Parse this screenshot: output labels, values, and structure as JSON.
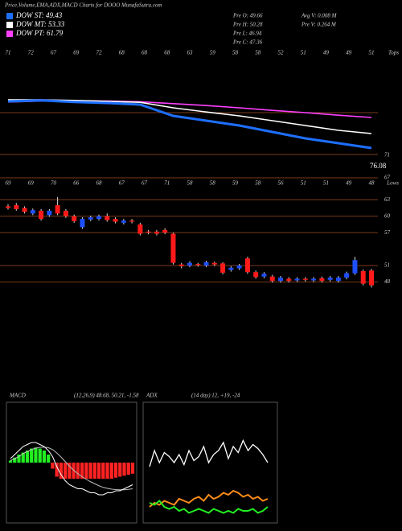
{
  "header": {
    "title": "Price,Volume,EMA,ADX,MACD Charts for DOOO MunafaSutra.com"
  },
  "legend": [
    {
      "label": "DOW ST: 49.43",
      "color": "#1e6fff"
    },
    {
      "label": "DOW MT: 53.33",
      "color": "#ffffff"
    },
    {
      "label": "DOW PT: 61.79",
      "color": "#ff40ff"
    }
  ],
  "stats": [
    "Pre O: 49.66",
    "Pre H: 50.28",
    "Pre L: 46.94",
    "Pre C: 47.36",
    "Avg V: 0.008 M",
    "Pre V: 0.264 M"
  ],
  "chart_data": [
    {
      "type": "line",
      "corner_label": "Tops",
      "top_labels": [
        "71",
        "72",
        "67",
        "69",
        "72",
        "68",
        "68",
        "68",
        "63",
        "59",
        "58",
        "58",
        "52",
        "51",
        "49",
        "49",
        "51"
      ],
      "right_labels": [
        "71",
        "76.08"
      ],
      "x": [
        0,
        4,
        8,
        12,
        16,
        20,
        24,
        28,
        32,
        36,
        40,
        44
      ],
      "xlim": [
        0,
        44
      ],
      "ylim": [
        44,
        76.5
      ],
      "series": [
        {
          "color": "#ff40ff",
          "values": [
            62.3,
            62.6,
            62.7,
            62.6,
            62.4,
            61.8,
            61.2,
            60.5,
            59.7,
            59,
            58.2,
            57.5
          ]
        },
        {
          "color": "#ffffff",
          "values": [
            63,
            63,
            62.8,
            62.5,
            62.2,
            60.5,
            59.2,
            58,
            56.5,
            55,
            53.5,
            52.5
          ]
        },
        {
          "color": "#1e6fff",
          "values": [
            62.5,
            62.8,
            62.3,
            62,
            61.5,
            58,
            56.5,
            55,
            53,
            51,
            49.5,
            48
          ]
        }
      ]
    },
    {
      "type": "candlestick",
      "corner_label": "Lows",
      "top_labels": [
        "69",
        "69",
        "70",
        "66",
        "68",
        "67",
        "67",
        "71",
        "58",
        "58",
        "59",
        "58",
        "56",
        "51",
        "51",
        "49",
        "48"
      ],
      "up_color": "#1e4fff",
      "down_color": "#ff1a1a",
      "ylim": [
        45,
        67
      ],
      "yticks": [
        67,
        63,
        60,
        57,
        51,
        48
      ],
      "open": [
        61.8,
        62,
        61.5,
        60.5,
        61,
        60.2,
        62,
        61,
        60,
        58,
        59.4,
        59.5,
        60,
        59.5,
        58.8,
        59.2,
        58.5,
        57.2,
        57.2,
        57.5,
        56.8,
        51.2,
        51,
        51.3,
        51,
        51.5,
        51.4,
        50.2,
        50.5,
        52.3,
        49.8,
        49,
        49,
        48.2,
        48.6,
        48.3,
        48.6,
        48.3,
        48.7,
        48.4,
        48.2,
        48.8,
        49.6,
        50,
        50.1
      ],
      "high": [
        62.2,
        62.4,
        61.8,
        61.4,
        61.3,
        61.3,
        63.5,
        61.3,
        60.3,
        59.8,
        60.1,
        60.3,
        60.5,
        59.8,
        59.5,
        59.5,
        58.8,
        57.5,
        57.5,
        57.8,
        57,
        51.5,
        51.8,
        51.5,
        51.9,
        51.7,
        51.6,
        50.9,
        51.3,
        52.6,
        50.1,
        49.8,
        49.3,
        49.1,
        48.9,
        48.9,
        48.9,
        48.9,
        49,
        49.1,
        49.1,
        49.9,
        52.6,
        50.3,
        50.4
      ],
      "low": [
        61.2,
        61,
        60.5,
        60.2,
        59.2,
        59.9,
        60.2,
        59.7,
        58.8,
        57.7,
        59.1,
        59.2,
        59,
        58.7,
        58.5,
        58.7,
        56.5,
        56.7,
        56.5,
        56.7,
        51.2,
        50.5,
        50.7,
        50.8,
        50.7,
        50.9,
        49.4,
        49.9,
        50.2,
        49.5,
        48.6,
        48.7,
        47.9,
        47.9,
        47.9,
        48,
        48.1,
        48,
        47.9,
        48.1,
        47.9,
        48.5,
        49.3,
        47.4,
        47
      ],
      "close": [
        61.5,
        61.3,
        60.8,
        61.1,
        59.5,
        61,
        60.5,
        60,
        59.1,
        59.5,
        59.8,
        60,
        59.3,
        59,
        59.2,
        59,
        56.8,
        57,
        56.8,
        57,
        51.5,
        50.9,
        51.5,
        51.1,
        51.6,
        51.2,
        49.7,
        50.6,
        51,
        49.8,
        48.9,
        49.5,
        48.2,
        48.8,
        48.2,
        48.6,
        48.4,
        48.6,
        48.2,
        48.8,
        48.8,
        49.6,
        52,
        47.7,
        47.4
      ]
    },
    {
      "type": "macd",
      "title": "MACD",
      "subtitle": "(12,26,9) 48.68, 50.21, -1.58",
      "ylim": [
        -3,
        3
      ],
      "up_color": "#22ee22",
      "down_color": "#ff2222",
      "line_color": "#ffffff",
      "signal_color": "#bbbbbb",
      "macd": [
        0.2,
        0.4,
        0.6,
        0.8,
        0.9,
        1.0,
        1.0,
        0.9,
        0.8,
        0.6,
        0.3,
        -0.2,
        -0.6,
        -0.9,
        -1.1,
        -1.2,
        -1.3,
        -1.3,
        -1.4,
        -1.5,
        -1.5,
        -1.6,
        -1.6,
        -1.5,
        -1.5,
        -1.4,
        -1.4,
        -1.3,
        -1.2,
        -1.1
      ],
      "signal": [
        0.1,
        0.2,
        0.3,
        0.45,
        0.55,
        0.65,
        0.72,
        0.76,
        0.77,
        0.74,
        0.65,
        0.48,
        0.28,
        0.05,
        -0.18,
        -0.38,
        -0.55,
        -0.7,
        -0.83,
        -0.95,
        -1.05,
        -1.15,
        -1.23,
        -1.28,
        -1.32,
        -1.34,
        -1.35,
        -1.35,
        -1.33,
        -1.3
      ],
      "histogram": [
        0.1,
        0.25,
        0.4,
        0.5,
        0.6,
        0.7,
        0.75,
        0.7,
        0.6,
        0.4,
        -0.3,
        -0.7,
        -0.8,
        -0.8,
        -0.8,
        -0.8,
        -0.8,
        -0.8,
        -0.8,
        -0.8,
        -0.8,
        -0.8,
        -0.8,
        -0.8,
        -0.8,
        -0.75,
        -0.7,
        -0.65,
        -0.6,
        -0.55
      ]
    },
    {
      "type": "adx",
      "title": "ADX",
      "subtitle": "(14 day) 12, +19, -24",
      "ylim": [
        0,
        60
      ],
      "series": [
        {
          "color": "#ffffff",
          "values": [
            28,
            36,
            30,
            35,
            33,
            30,
            34,
            29,
            36,
            31,
            33,
            38,
            30,
            34,
            36,
            40,
            32,
            38,
            35,
            41,
            36,
            39,
            37,
            34,
            30
          ]
        },
        {
          "color": "#ff8c1a",
          "values": [
            8,
            10,
            9,
            11,
            10,
            9,
            12,
            11,
            10,
            12,
            13,
            11,
            14,
            12,
            13,
            15,
            14,
            16,
            15,
            13,
            14,
            12,
            13,
            11,
            12
          ]
        },
        {
          "color": "#22ee22",
          "values": [
            10,
            9,
            11,
            8,
            7,
            8,
            6,
            7,
            5,
            6,
            7,
            6,
            5,
            7,
            6,
            5,
            6,
            5,
            7,
            6,
            6,
            7,
            5,
            6,
            8
          ]
        }
      ]
    }
  ]
}
